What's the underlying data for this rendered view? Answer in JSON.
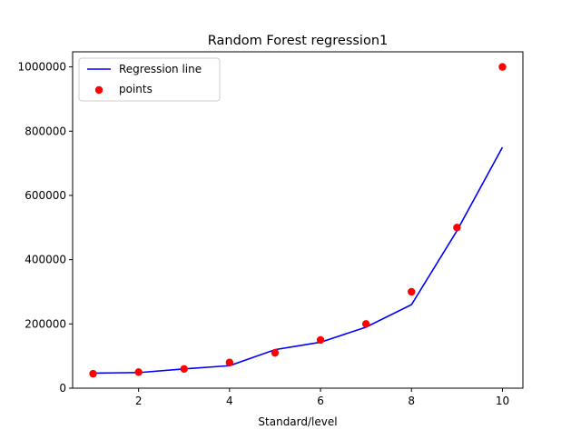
{
  "chart_data": {
    "type": "scatter",
    "title": "Random Forest regression1",
    "xlabel": "Standard/level",
    "ylabel": "",
    "xlim": [
      0.55,
      10.45
    ],
    "ylim": [
      0,
      1047000
    ],
    "xticks": [
      2,
      4,
      6,
      8,
      10
    ],
    "yticks": [
      0,
      200000,
      400000,
      600000,
      800000,
      1000000
    ],
    "legend_position": "top-left",
    "grid": false,
    "series": [
      {
        "name": "Regression line",
        "kind": "line",
        "color": "#0000ff",
        "x": [
          1,
          2,
          3,
          4,
          5,
          6,
          7,
          8,
          9,
          10
        ],
        "y": [
          47000,
          48500,
          60000,
          70000,
          120000,
          143000,
          190000,
          260000,
          490000,
          750000
        ]
      },
      {
        "name": "points",
        "kind": "scatter",
        "color": "#ff0000",
        "x": [
          1,
          2,
          3,
          4,
          5,
          6,
          7,
          8,
          9,
          10
        ],
        "y": [
          45000,
          50000,
          60000,
          80000,
          110000,
          150000,
          200000,
          300000,
          500000,
          1000000
        ]
      }
    ]
  }
}
